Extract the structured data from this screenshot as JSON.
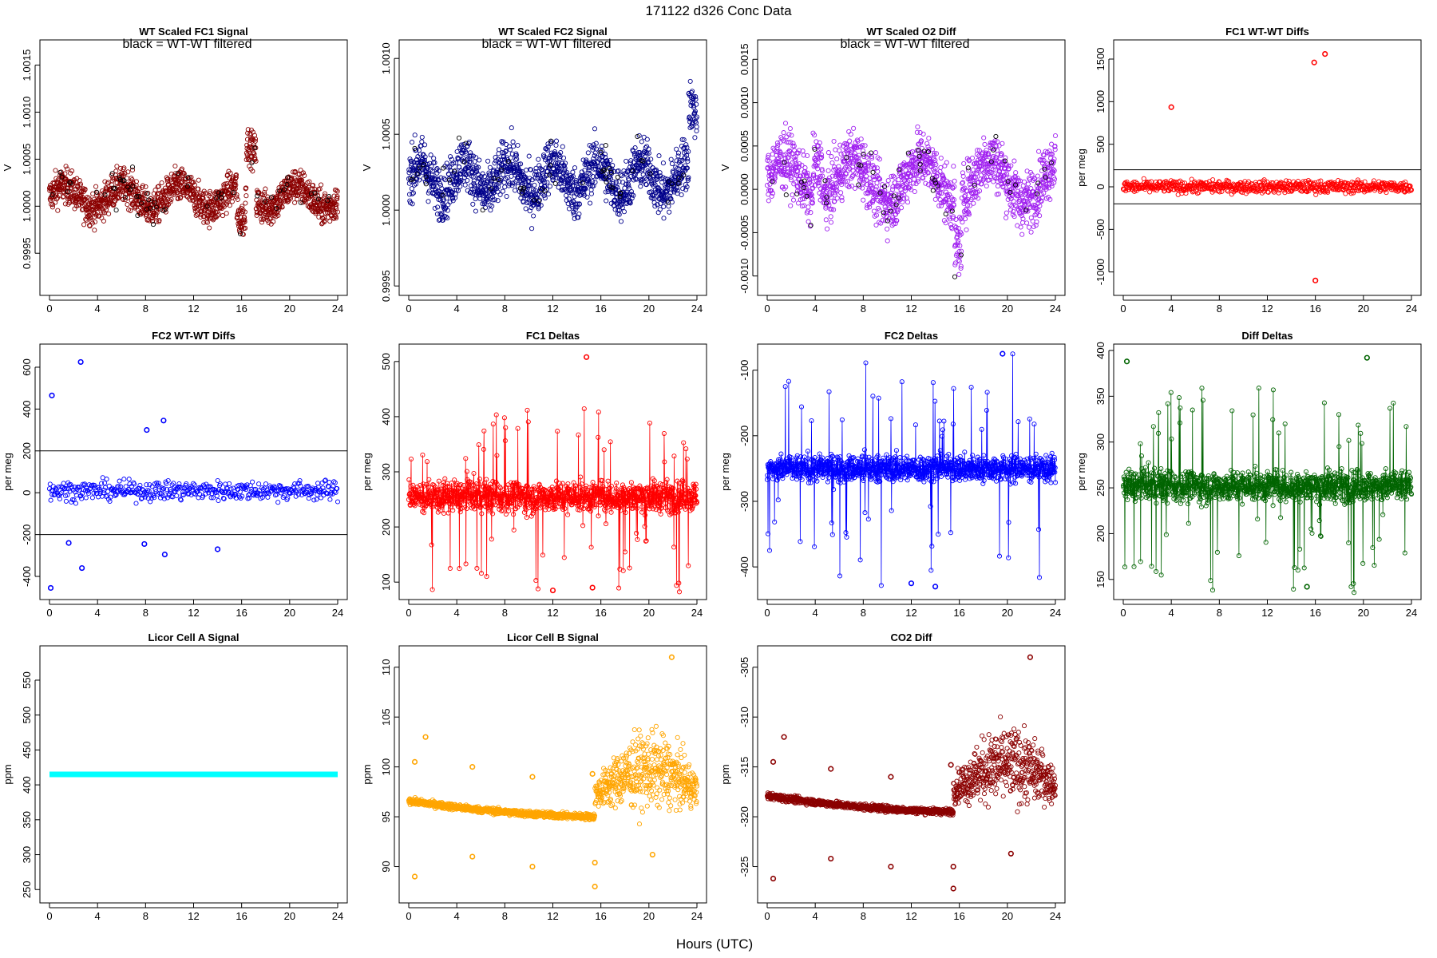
{
  "page": {
    "title": "171122   d326   Conc Data",
    "x_axis_label": "Hours (UTC)"
  },
  "chart_data": [
    {
      "id": "fc1-signal",
      "type": "scatter",
      "title": "WT Scaled FC1 Signal",
      "note": "black = WT-WT filtered",
      "ylabel": "V",
      "xlim": [
        0,
        24
      ],
      "ylim": [
        0.99912,
        1.0017
      ],
      "x_ticks": [
        0,
        4,
        8,
        12,
        16,
        20,
        24
      ],
      "x_tick_labels": [
        "0",
        "4",
        "8",
        "12",
        "16",
        "20",
        "24"
      ],
      "y_ticks": [
        0.9995,
        1.0,
        1.0005,
        1.001,
        1.0015
      ],
      "y_tick_labels": [
        "0.9995",
        "1.0000",
        "1.0005",
        "1.0010",
        "1.0015"
      ],
      "series": [
        {
          "name": "FC1 signal",
          "color": "#8b0000",
          "style": "points",
          "n": 1400,
          "baseline": 1.0001,
          "noise": 0.00018,
          "trend": "fc1"
        },
        {
          "name": "WT-WT filtered",
          "color": "#000000",
          "style": "points",
          "n": 60,
          "baseline": 1.0001,
          "noise": 0.00018,
          "trend": "fc1"
        }
      ]
    },
    {
      "id": "fc2-signal",
      "type": "scatter",
      "title": "WT Scaled FC2 Signal",
      "note": "black = WT-WT filtered",
      "ylabel": "V",
      "xlim": [
        0,
        24
      ],
      "ylim": [
        0.99948,
        1.00108
      ],
      "x_ticks": [
        0,
        4,
        8,
        12,
        16,
        20,
        24
      ],
      "x_tick_labels": [
        "0",
        "4",
        "8",
        "12",
        "16",
        "20",
        "24"
      ],
      "y_ticks": [
        0.9995,
        1.0,
        1.0005,
        1.001
      ],
      "y_tick_labels": [
        "0.9995",
        "1.0000",
        "1.0005",
        "1.0010"
      ],
      "series": [
        {
          "name": "FC2 signal",
          "color": "#00008b",
          "style": "points",
          "n": 1400,
          "baseline": 1.00021,
          "noise": 0.00017,
          "trend": "fc2"
        },
        {
          "name": "WT-WT filtered",
          "color": "#000000",
          "style": "points",
          "n": 60,
          "baseline": 1.00021,
          "noise": 0.00017,
          "trend": "fc2"
        }
      ]
    },
    {
      "id": "o2-diff",
      "type": "scatter",
      "title": "WT Scaled O2 Diff",
      "note": "black = WT-WT filtered",
      "ylabel": "V",
      "xlim": [
        0,
        24
      ],
      "ylim": [
        -0.00115,
        0.00165
      ],
      "x_ticks": [
        0,
        4,
        8,
        12,
        16,
        20,
        24
      ],
      "x_tick_labels": [
        "0",
        "4",
        "8",
        "12",
        "16",
        "20",
        "24"
      ],
      "y_ticks": [
        -0.001,
        -0.0005,
        0.0,
        0.0005,
        0.001,
        0.0015
      ],
      "y_tick_labels": [
        "-0.0010",
        "-0.0005",
        "0.0000",
        "0.0005",
        "0.0010",
        "0.0015"
      ],
      "series": [
        {
          "name": "O2 diff",
          "color": "#a020f0",
          "style": "points",
          "n": 1400,
          "baseline": 0.0001,
          "noise": 0.00033,
          "trend": "o2"
        },
        {
          "name": "WT-WT filtered",
          "color": "#000000",
          "style": "points",
          "n": 60,
          "baseline": 0.0001,
          "noise": 0.00033,
          "trend": "o2"
        }
      ]
    },
    {
      "id": "fc1-wtwt",
      "type": "scatter",
      "title": "FC1 WT-WT Diffs",
      "ylabel": "per meg",
      "xlim": [
        0,
        24
      ],
      "ylim": [
        -1200,
        1650
      ],
      "x_ticks": [
        0,
        4,
        8,
        12,
        16,
        20,
        24
      ],
      "x_tick_labels": [
        "0",
        "4",
        "8",
        "12",
        "16",
        "20",
        "24"
      ],
      "y_ticks": [
        -1000,
        -500,
        0,
        500,
        1000,
        1500
      ],
      "y_tick_labels": [
        "-1000",
        "-500",
        "0",
        "500",
        "1000",
        "1500"
      ],
      "hlines": [
        200,
        -200
      ],
      "series": [
        {
          "name": "FC1 WT-WT",
          "color": "#ff0000",
          "style": "points",
          "n": 700,
          "baseline": 0,
          "noise": 70,
          "trend": "flat"
        }
      ],
      "outliers": [
        [
          4.0,
          935
        ],
        [
          15.9,
          1460
        ],
        [
          16.8,
          1560
        ],
        [
          16.0,
          -1100
        ]
      ]
    },
    {
      "id": "fc2-wtwt",
      "type": "scatter",
      "title": "FC2 WT-WT Diffs",
      "ylabel": "per meg",
      "xlim": [
        0,
        24
      ],
      "ylim": [
        -480,
        680
      ],
      "x_ticks": [
        0,
        4,
        8,
        12,
        16,
        20,
        24
      ],
      "x_tick_labels": [
        "0",
        "4",
        "8",
        "12",
        "16",
        "20",
        "24"
      ],
      "y_ticks": [
        -400,
        -200,
        0,
        200,
        400,
        600
      ],
      "y_tick_labels": [
        "-400",
        "-200",
        "0",
        "200",
        "400",
        "600"
      ],
      "hlines": [
        200,
        -200
      ],
      "series": [
        {
          "name": "FC2 WT-WT",
          "color": "#0000ff",
          "style": "points",
          "n": 450,
          "baseline": 10,
          "noise": 45,
          "trend": "flat"
        }
      ],
      "outliers": [
        [
          0.2,
          465
        ],
        [
          2.6,
          625
        ],
        [
          9.5,
          345
        ],
        [
          0.1,
          -455
        ],
        [
          2.7,
          -360
        ],
        [
          1.6,
          -240
        ],
        [
          7.9,
          -245
        ],
        [
          9.6,
          -295
        ],
        [
          14.0,
          -270
        ],
        [
          8.1,
          300
        ]
      ]
    },
    {
      "id": "fc1-deltas",
      "type": "line",
      "title": "FC1 Deltas",
      "ylabel": "per meg",
      "xlim": [
        0,
        24
      ],
      "ylim": [
        80,
        520
      ],
      "x_ticks": [
        0,
        4,
        8,
        12,
        16,
        20,
        24
      ],
      "x_tick_labels": [
        "0",
        "4",
        "8",
        "12",
        "16",
        "20",
        "24"
      ],
      "y_ticks": [
        100,
        200,
        300,
        400,
        500
      ],
      "y_tick_labels": [
        "100",
        "200",
        "300",
        "400",
        "500"
      ],
      "series": [
        {
          "name": "FC1 delta",
          "color": "#ff0000",
          "style": "linepoints",
          "n": 1100,
          "baseline": 255,
          "noise": 28,
          "spike": 110,
          "trend": "flat"
        }
      ],
      "outliers": [
        [
          14.8,
          508
        ],
        [
          12.0,
          85
        ],
        [
          15.3,
          90
        ]
      ]
    },
    {
      "id": "fc2-deltas",
      "type": "line",
      "title": "FC2 Deltas",
      "ylabel": "per meg",
      "xlim": [
        0,
        24
      ],
      "ylim": [
        -440,
        -70
      ],
      "x_ticks": [
        0,
        4,
        8,
        12,
        16,
        20,
        24
      ],
      "x_tick_labels": [
        "0",
        "4",
        "8",
        "12",
        "16",
        "20",
        "24"
      ],
      "y_ticks": [
        -400,
        -300,
        -200,
        -100
      ],
      "y_tick_labels": [
        "-400",
        "-300",
        "-200",
        "-100"
      ],
      "series": [
        {
          "name": "FC2 delta",
          "color": "#0000ff",
          "style": "linepoints",
          "n": 1100,
          "baseline": -250,
          "noise": 20,
          "spike": 110,
          "trend": "flat"
        }
      ],
      "outliers": [
        [
          19.6,
          -75
        ],
        [
          12.0,
          -425
        ],
        [
          14.0,
          -430
        ]
      ]
    },
    {
      "id": "diff-deltas",
      "type": "line",
      "title": "Diff Deltas",
      "ylabel": "per meg",
      "xlim": [
        0,
        24
      ],
      "ylim": [
        135,
        400
      ],
      "x_ticks": [
        0,
        4,
        8,
        12,
        16,
        20,
        24
      ],
      "x_tick_labels": [
        "0",
        "4",
        "8",
        "12",
        "16",
        "20",
        "24"
      ],
      "y_ticks": [
        150,
        200,
        250,
        300,
        350,
        400
      ],
      "y_tick_labels": [
        "150",
        "200",
        "250",
        "300",
        "350",
        "400"
      ],
      "series": [
        {
          "name": "Diff delta",
          "color": "#006400",
          "style": "linepoints",
          "n": 1100,
          "baseline": 252,
          "noise": 17,
          "spike": 75,
          "trend": "flat"
        }
      ],
      "outliers": [
        [
          0.3,
          388
        ],
        [
          20.3,
          392
        ],
        [
          15.3,
          142
        ]
      ]
    },
    {
      "id": "licor-a",
      "type": "scatter",
      "title": "Licor Cell A Signal",
      "ylabel": "ppm",
      "xlim": [
        0,
        24
      ],
      "ylim": [
        240,
        590
      ],
      "x_ticks": [
        0,
        4,
        8,
        12,
        16,
        20,
        24
      ],
      "x_tick_labels": [
        "0",
        "4",
        "8",
        "12",
        "16",
        "20",
        "24"
      ],
      "y_ticks": [
        250,
        300,
        350,
        400,
        450,
        500,
        550
      ],
      "y_tick_labels": [
        "250",
        "300",
        "350",
        "400",
        "450",
        "500",
        "550"
      ],
      "series": [
        {
          "name": "Cell A",
          "color": "#00ffff",
          "style": "thickline",
          "n": 2,
          "baseline": 415,
          "noise": 0,
          "trend": "flat"
        }
      ]
    },
    {
      "id": "licor-b",
      "type": "scatter",
      "title": "Licor Cell B Signal",
      "ylabel": "ppm",
      "xlim": [
        0,
        24
      ],
      "ylim": [
        87,
        111.5
      ],
      "x_ticks": [
        0,
        4,
        8,
        12,
        16,
        20,
        24
      ],
      "x_tick_labels": [
        "0",
        "4",
        "8",
        "12",
        "16",
        "20",
        "24"
      ],
      "y_ticks": [
        90,
        95,
        100,
        105,
        110
      ],
      "y_tick_labels": [
        "90",
        "95",
        "100",
        "105",
        "110"
      ],
      "series": [
        {
          "name": "Cell B",
          "color": "#ffa500",
          "style": "points",
          "n": 1400,
          "baseline": 96,
          "noise": 0.3,
          "trend": "licor"
        }
      ],
      "outliers": [
        [
          0.5,
          100.5
        ],
        [
          5.3,
          100.0
        ],
        [
          10.3,
          99.0
        ],
        [
          15.3,
          99.3
        ],
        [
          0.5,
          89.0
        ],
        [
          5.3,
          91.0
        ],
        [
          10.3,
          90.0
        ],
        [
          15.5,
          90.4
        ],
        [
          15.5,
          88.0
        ],
        [
          20.3,
          91.2
        ],
        [
          21.9,
          111.0
        ],
        [
          1.4,
          103.0
        ]
      ]
    },
    {
      "id": "co2-diff",
      "type": "scatter",
      "title": "CO2 Diff",
      "ylabel": "ppm",
      "xlim": [
        0,
        24
      ],
      "ylim": [
        -328,
        -303.5
      ],
      "x_ticks": [
        0,
        4,
        8,
        12,
        16,
        20,
        24
      ],
      "x_tick_labels": [
        "0",
        "4",
        "8",
        "12",
        "16",
        "20",
        "24"
      ],
      "y_ticks": [
        -325,
        -320,
        -315,
        -310,
        -305
      ],
      "y_tick_labels": [
        "-325",
        "-320",
        "-315",
        "-310",
        "-305"
      ],
      "series": [
        {
          "name": "CO2 diff",
          "color": "#8b0000",
          "style": "points",
          "n": 1400,
          "baseline": -318.5,
          "noise": 0.3,
          "trend": "licor"
        }
      ],
      "outliers": [
        [
          0.5,
          -314.5
        ],
        [
          5.3,
          -315.2
        ],
        [
          10.3,
          -316.0
        ],
        [
          15.3,
          -314.8
        ],
        [
          0.5,
          -326.2
        ],
        [
          5.3,
          -324.2
        ],
        [
          10.3,
          -325.0
        ],
        [
          15.5,
          -325.0
        ],
        [
          15.5,
          -327.2
        ],
        [
          20.3,
          -323.7
        ],
        [
          21.9,
          -304.0
        ],
        [
          1.4,
          -312.0
        ]
      ]
    }
  ]
}
